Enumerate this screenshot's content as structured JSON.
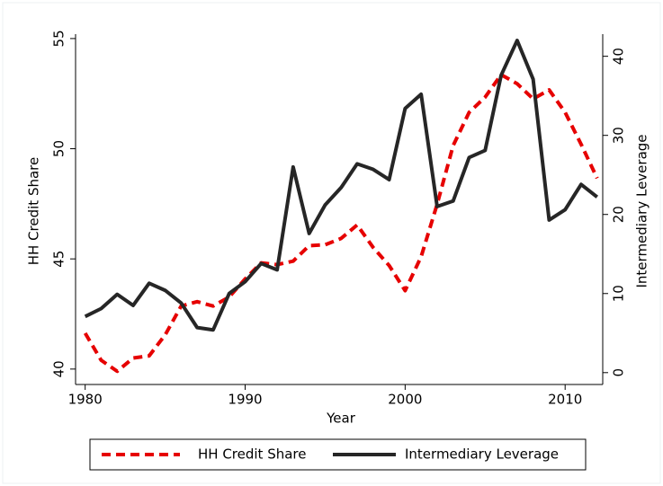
{
  "chart_data": {
    "type": "line",
    "x_label": "Year",
    "y_label": "HH Credit Share",
    "y2_label": "Intermediary Leverage",
    "x": [
      1980,
      1981,
      1982,
      1983,
      1984,
      1985,
      1986,
      1987,
      1988,
      1989,
      1990,
      1991,
      1992,
      1993,
      1994,
      1995,
      1996,
      1997,
      1998,
      1999,
      2000,
      2001,
      2002,
      2003,
      2004,
      2005,
      2006,
      2007,
      2008,
      2009,
      2010,
      2011,
      2012
    ],
    "series": [
      {
        "name": "HH Credit Share",
        "color": "#e60000",
        "dash": true,
        "values": [
          41.63,
          40.4,
          39.9,
          40.5,
          40.6,
          41.55,
          42.86,
          43.06,
          42.86,
          43.27,
          44.09,
          44.82,
          44.74,
          44.9,
          45.6,
          45.64,
          45.93,
          46.54,
          45.52,
          44.7,
          43.56,
          45.1,
          47.48,
          50.14,
          51.65,
          52.34,
          53.36,
          52.95,
          52.26,
          52.67,
          51.65,
          50.2,
          48.66
        ]
      },
      {
        "name": "Intermediary Leverage",
        "color": "#262626",
        "dash": false,
        "axis": "y2",
        "values": [
          7.1,
          8.1,
          9.9,
          8.5,
          11.3,
          10.4,
          8.8,
          5.7,
          5.4,
          10.0,
          11.5,
          13.8,
          13.0,
          26.0,
          17.6,
          21.2,
          23.4,
          26.4,
          25.7,
          24.4,
          33.4,
          35.2,
          21.0,
          21.7,
          27.2,
          28.1,
          37.6,
          42.0,
          37.1,
          19.3,
          20.6,
          23.8,
          22.2
        ]
      }
    ],
    "xlim": [
      1979.4,
      2012.35
    ],
    "xticks": [
      1980,
      1990,
      2000,
      2010
    ],
    "ylim": [
      39.3,
      55.2
    ],
    "yticks": [
      40,
      45,
      50,
      55
    ],
    "y2lim": [
      -1.5,
      42.8
    ],
    "y2ticks": [
      0,
      10,
      20,
      30,
      40
    ],
    "legend": "bottom",
    "grid": false
  }
}
